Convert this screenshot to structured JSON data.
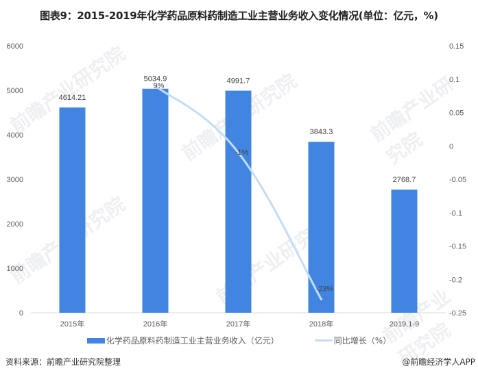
{
  "title": "图表9：2015-2019年化学药品原料药制造工业主营业务收入变化情况(单位：亿元，%)",
  "legend": {
    "bar_label": "化学药品原料药制造工业主营业务收入（亿元）",
    "line_label": "同比增长（%）"
  },
  "footer": {
    "source": "资料来源：前瞻产业研究院整理",
    "credit": "@前瞻经济学人APP"
  },
  "watermark": "前瞻产业研究院",
  "colors": {
    "bar": "#4285e0",
    "line": "#c5dcf5",
    "axis": "#d9d9d9"
  },
  "chart_data": {
    "type": "bar",
    "title": "图表9：2015-2019年化学药品原料药制造工业主营业务收入变化情况(单位：亿元，%)",
    "categories": [
      "2015年",
      "2016年",
      "2017年",
      "2018年",
      "2019.1-9"
    ],
    "series": [
      {
        "name": "化学药品原料药制造工业主营业务收入（亿元）",
        "type": "bar",
        "axis": "left",
        "values": [
          4614.21,
          5034.9,
          4991.7,
          3843.3,
          2768.7
        ],
        "labels": [
          "4614.21",
          "5034.9",
          "4991.7",
          "3843.3",
          "2768.7"
        ]
      },
      {
        "name": "同比增长（%）",
        "type": "line",
        "axis": "right",
        "values": [
          null,
          0.09,
          -0.01,
          -0.23,
          null
        ],
        "labels": [
          "",
          "9%",
          "-1%",
          "-23%",
          ""
        ]
      }
    ],
    "left_axis": {
      "ylim": [
        0,
        6000
      ],
      "ticks": [
        "0",
        "1000",
        "2000",
        "3000",
        "4000",
        "5000",
        "6000"
      ]
    },
    "right_axis": {
      "ylim": [
        -0.25,
        0.15
      ],
      "ticks": [
        "-0.25",
        "-0.2",
        "-0.15",
        "-0.1",
        "-0.05",
        "0",
        "0.05",
        "0.1",
        "0.15"
      ]
    },
    "xlabel": "",
    "ylabel": "",
    "grid": false,
    "legend_position": "bottom"
  }
}
